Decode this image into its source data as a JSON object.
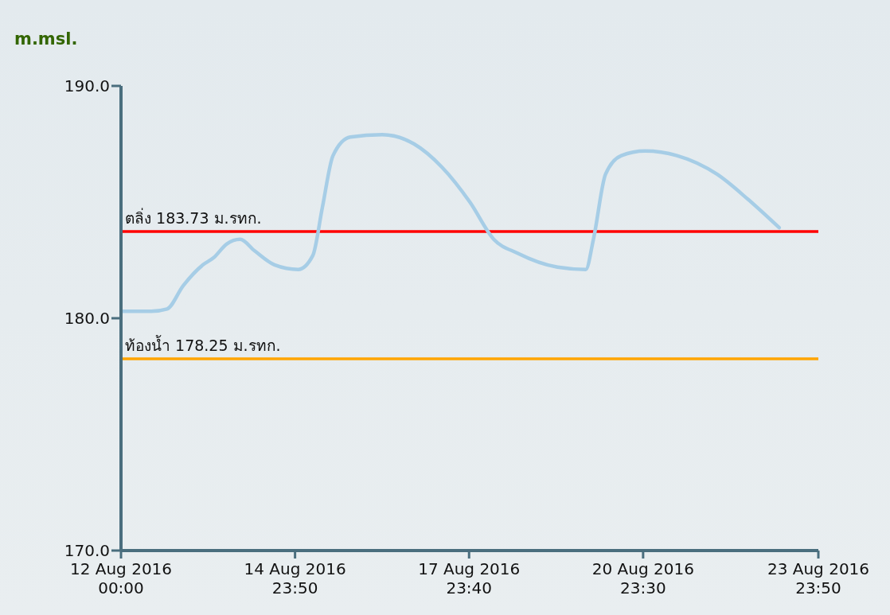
{
  "chart_data": {
    "type": "line",
    "ylabel": "m.msl.",
    "x": [
      "2016-08-12T00:00",
      "2016-08-12T12:30",
      "2016-08-12T19:00",
      "2016-08-13T01:40",
      "2016-08-13T09:50",
      "2016-08-13T14:10",
      "2016-08-13T19:40",
      "2016-08-14T01:10",
      "2016-08-14T07:10",
      "2016-08-14T15:20",
      "2016-08-15T01:10",
      "2016-08-15T07:10",
      "2016-08-15T11:10",
      "2016-08-15T15:30",
      "2016-08-15T22:40",
      "2016-08-16T11:50",
      "2016-08-17T01:00",
      "2016-08-17T12:30",
      "2016-08-18T00:00",
      "2016-08-18T09:50",
      "2016-08-18T19:40",
      "2016-08-19T12:10",
      "2016-08-19T23:50",
      "2016-08-20T03:00",
      "2016-08-20T08:00",
      "2016-08-20T14:30",
      "2016-08-21T00:20",
      "2016-08-21T13:30",
      "2016-08-22T06:00",
      "2016-08-22T19:00",
      "2016-08-23T07:40"
    ],
    "series": [
      {
        "color": "#a6cde6",
        "values": [
          180.3,
          180.3,
          180.4,
          181.4,
          182.3,
          182.6,
          183.2,
          183.4,
          182.9,
          182.3,
          182.1,
          182.7,
          184.8,
          187.0,
          187.8,
          187.9,
          187.5,
          186.5,
          185.0,
          183.4,
          182.8,
          182.2,
          182.1,
          183.4,
          186.2,
          187.0,
          187.2,
          187.0,
          186.2,
          185.1,
          183.9
        ]
      }
    ],
    "xlim": [
      "2016-08-12T00:00",
      "2016-08-23T23:50"
    ],
    "xticks": [
      {
        "value": "2016-08-12T00:00",
        "label": "12 Aug 2016\n00:00"
      },
      {
        "value": "2016-08-14T23:50",
        "label": "14 Aug 2016\n23:50"
      },
      {
        "value": "2016-08-17T23:40",
        "label": "17 Aug 2016\n23:40"
      },
      {
        "value": "2016-08-20T23:30",
        "label": "20 Aug 2016\n23:30"
      },
      {
        "value": "2016-08-23T23:50",
        "label": "23 Aug 2016\n23:50"
      }
    ],
    "ylim": [
      170,
      190
    ],
    "yticks": [
      {
        "value": 170,
        "label": "170.0"
      },
      {
        "value": 180,
        "label": "180.0"
      },
      {
        "value": 190,
        "label": "190.0"
      }
    ],
    "ref_lines": [
      {
        "axis": "y",
        "value": 183.73,
        "label": "ตลิ่ง 183.73 ม.รทก.",
        "color": "#ff0000"
      },
      {
        "axis": "y",
        "value": 178.25,
        "label": "ท้องน้ำ 178.25 ม.รทก.",
        "color": "#ffa500"
      }
    ],
    "grid": false,
    "marker": "none",
    "line_style": "solid"
  }
}
